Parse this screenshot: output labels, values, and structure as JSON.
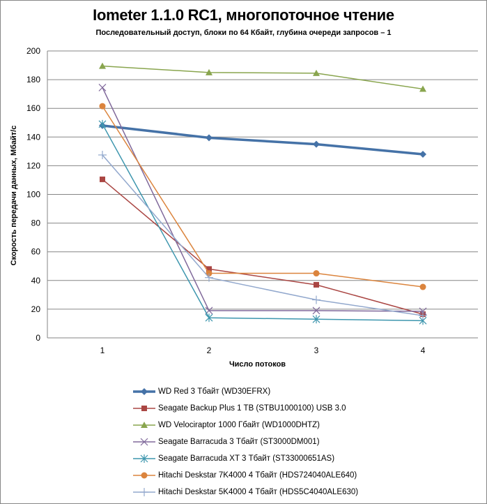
{
  "chart_data": {
    "type": "line",
    "title": "Iometer 1.1.0 RC1, многопоточное чтение",
    "subtitle": "Последовательный  доступ, блоки  по 64 Кбайт,  глубина очереди запросов  – 1",
    "xlabel": "Число  потоков",
    "ylabel": "Скорость  передачи данных, Мбайт/с",
    "x": [
      1,
      2,
      3,
      4
    ],
    "x_tick_labels": [
      "1",
      "2",
      "3",
      "4"
    ],
    "ylim": [
      0,
      200
    ],
    "y_ticks": [
      0,
      20,
      40,
      60,
      80,
      100,
      120,
      140,
      160,
      180,
      200
    ],
    "y_tick_labels": [
      "0",
      "20",
      "40",
      "60",
      "80",
      "100",
      "120",
      "140",
      "160",
      "180",
      "200"
    ],
    "grid": "horizontal",
    "legend_position": "bottom",
    "series": [
      {
        "name": "WD Red  3 Тбайт (WD30EFRX)",
        "color": "#4572A7",
        "marker": "diamond",
        "thick": true,
        "values": [
          148,
          139.5,
          135,
          128
        ]
      },
      {
        "name": "Seagate  Backup Plus 1 TB (STBU1000100) USB 3.0",
        "color": "#AA4643",
        "marker": "square",
        "thick": false,
        "values": [
          110.5,
          48,
          37,
          16.5
        ]
      },
      {
        "name": "WD Velociraptor 1000 Гбайт (WD1000DHTZ)",
        "color": "#89A54E",
        "marker": "triangle",
        "thick": false,
        "values": [
          189.5,
          185,
          184.5,
          173.5
        ]
      },
      {
        "name": "Seagate  Barracuda 3 Тбайт (ST3000DM001)",
        "color": "#80699B",
        "marker": "x",
        "thick": false,
        "values": [
          174.5,
          19,
          19,
          18.5
        ]
      },
      {
        "name": "Seagate  Barracuda XT 3 Тбайт  (ST33000651AS)",
        "color": "#3D96AE",
        "marker": "star",
        "thick": false,
        "values": [
          149,
          14,
          13,
          12
        ]
      },
      {
        "name": "Hitachi Deskstar 7K4000 4 Тбайт (HDS724040ALE640)",
        "color": "#DB843D",
        "marker": "circle",
        "thick": false,
        "values": [
          161.5,
          45,
          45,
          35.5
        ]
      },
      {
        "name": "Hitachi Deskstar 5K4000 4 Тбайт (HDS5C4040ALE630)",
        "color": "#92A8CD",
        "marker": "plus",
        "thick": false,
        "values": [
          127.5,
          42,
          26.5,
          15.5
        ]
      }
    ]
  }
}
